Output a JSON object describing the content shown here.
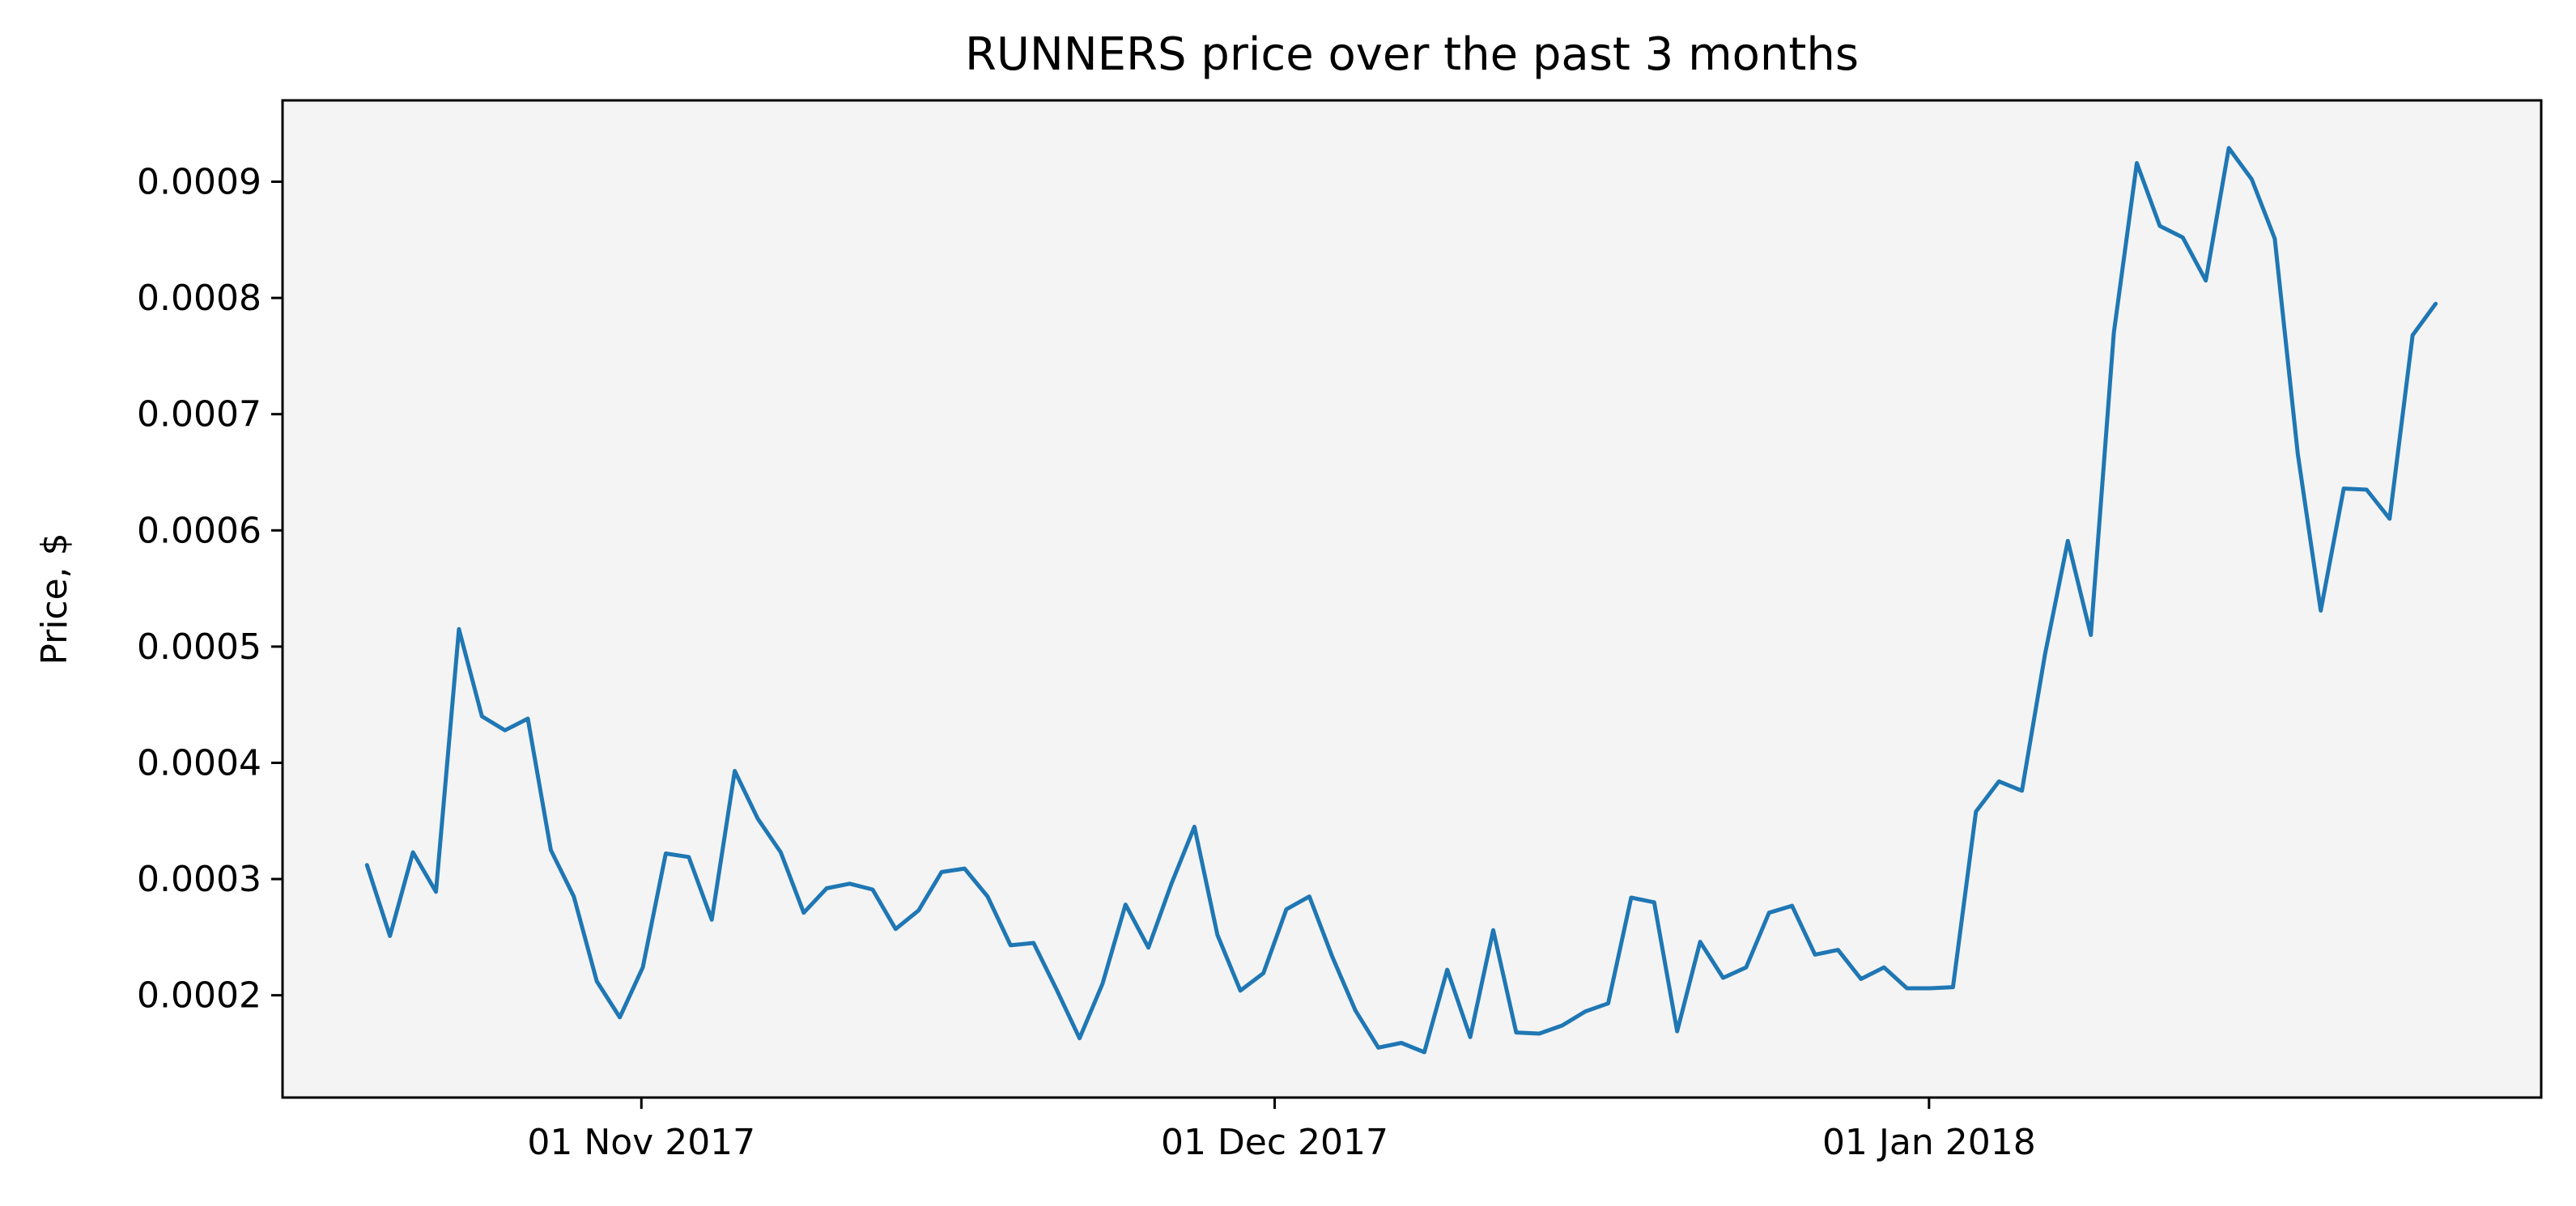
{
  "chart_data": {
    "type": "line",
    "title": "RUNNERS price over the past 3 months",
    "xlabel": "",
    "ylabel": "Price, $",
    "x_start": "2017-10-19",
    "x_end": "2018-01-25",
    "xlim": [
      "2017-10-15",
      "2018-01-30"
    ],
    "ylim": [
      0.000112,
      0.00097
    ],
    "x_ticks": [
      {
        "date": "2017-11-01",
        "label": "01 Nov 2017"
      },
      {
        "date": "2017-12-01",
        "label": "01 Dec 2017"
      },
      {
        "date": "2018-01-01",
        "label": "01 Jan 2018"
      }
    ],
    "y_ticks": [
      {
        "value": 0.0002,
        "label": "0.0002"
      },
      {
        "value": 0.0003,
        "label": "0.0003"
      },
      {
        "value": 0.0004,
        "label": "0.0004"
      },
      {
        "value": 0.0005,
        "label": "0.0005"
      },
      {
        "value": 0.0006,
        "label": "0.0006"
      },
      {
        "value": 0.0007,
        "label": "0.0007"
      },
      {
        "value": 0.0008,
        "label": "0.0008"
      },
      {
        "value": 0.0009,
        "label": "0.0009"
      }
    ],
    "grid": false,
    "background_color": "#f4f4f4",
    "series": [
      {
        "color": "#1f77b4",
        "values": [
          0.000312,
          0.000251,
          0.000323,
          0.000289,
          0.000515,
          0.00044,
          0.000428,
          0.000438,
          0.000325,
          0.000285,
          0.000212,
          0.000181,
          0.000224,
          0.000322,
          0.000319,
          0.000265,
          0.000393,
          0.000352,
          0.000323,
          0.000271,
          0.000292,
          0.000296,
          0.000291,
          0.000257,
          0.000273,
          0.000306,
          0.000309,
          0.000285,
          0.000243,
          0.000245,
          0.000205,
          0.000163,
          0.00021,
          0.000278,
          0.000241,
          0.000296,
          0.000345,
          0.000252,
          0.000204,
          0.000219,
          0.000274,
          0.000285,
          0.000233,
          0.000187,
          0.000155,
          0.000159,
          0.000151,
          0.000222,
          0.000164,
          0.000256,
          0.000168,
          0.000167,
          0.000174,
          0.000186,
          0.000193,
          0.000284,
          0.00028,
          0.000169,
          0.000246,
          0.000215,
          0.000224,
          0.000271,
          0.000277,
          0.000235,
          0.000239,
          0.000214,
          0.000224,
          0.000206,
          0.000206,
          0.000207,
          0.000358,
          0.000384,
          0.000376,
          0.000493,
          0.000591,
          0.00051,
          0.00077,
          0.000916,
          0.000862,
          0.000852,
          0.000815,
          0.000929,
          0.000902,
          0.000851,
          0.000666,
          0.000531,
          0.000636,
          0.000635,
          0.00061,
          0.000768,
          0.000795
        ]
      }
    ]
  }
}
